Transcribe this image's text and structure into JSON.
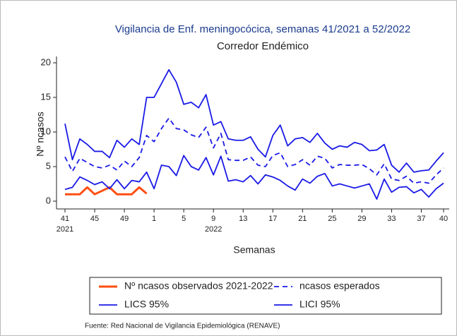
{
  "chart_data": {
    "type": "line",
    "title": "Vigilancia de Enf. meningocócica, semanas 41/2021 a 52/2022",
    "subtitle": "Corredor Endémico",
    "y_label": "Nº ncasos",
    "x_label": "Semanas",
    "year_labels": [
      {
        "value": 0,
        "label": "2021"
      },
      {
        "value": 20,
        "label": "2022"
      }
    ],
    "source": "Fuente: Red Nacional de Vigilancia Epidemiológica (RENAVE)",
    "xlim": [
      0,
      51
    ],
    "xticks": [
      {
        "value": 0,
        "label": "41"
      },
      {
        "value": 4,
        "label": "45"
      },
      {
        "value": 8,
        "label": "49"
      },
      {
        "value": 12,
        "label": "1"
      },
      {
        "value": 16,
        "label": "5"
      },
      {
        "value": 20,
        "label": "9"
      },
      {
        "value": 24,
        "label": "13"
      },
      {
        "value": 28,
        "label": "17"
      },
      {
        "value": 32,
        "label": "21"
      },
      {
        "value": 36,
        "label": "25"
      },
      {
        "value": 40,
        "label": "29"
      },
      {
        "value": 44,
        "label": "33"
      },
      {
        "value": 48,
        "label": "37"
      },
      {
        "value": 51,
        "label": "40"
      }
    ],
    "ylim": [
      0,
      20
    ],
    "yticks": [
      0,
      5,
      10,
      15,
      20
    ],
    "legend": "bottom",
    "series": [
      {
        "name": "Nº ncasos observados 2021-2022",
        "color": "#ff4e12",
        "width": 3,
        "dashed": false,
        "x": [
          0,
          1,
          2,
          3,
          4,
          5,
          6,
          7,
          8,
          9,
          10,
          11
        ],
        "values": [
          1,
          1,
          1,
          2,
          1,
          1.5,
          2,
          1,
          1,
          1,
          2,
          1.1
        ]
      },
      {
        "name": "ncasos esperados",
        "color": "#1a1ae6",
        "width": 1.8,
        "dashed": true,
        "x": [
          0,
          1,
          2,
          3,
          4,
          5,
          6,
          7,
          8,
          9,
          10,
          11,
          12,
          13,
          14,
          15,
          16,
          17,
          18,
          19,
          20,
          21,
          22,
          23,
          24,
          25,
          26,
          27,
          28,
          29,
          30,
          31,
          32,
          33,
          34,
          35,
          36,
          37,
          38,
          39,
          40,
          41,
          42,
          43,
          44,
          45,
          46,
          47,
          48,
          49,
          50,
          51
        ],
        "values": [
          6.4,
          4.3,
          6.2,
          5.6,
          5,
          4.8,
          5.2,
          4.5,
          5.8,
          5,
          6.3,
          9.5,
          8.6,
          10.5,
          12,
          10.5,
          10.3,
          9.6,
          9.2,
          10.7,
          7.7,
          9.8,
          6,
          5.9,
          5.9,
          6.4,
          5.2,
          5,
          6.6,
          7,
          5,
          5.3,
          6,
          5.2,
          6.5,
          6.2,
          4.8,
          5.3,
          5.2,
          5.2,
          5.3,
          4.7,
          3.8,
          5.4,
          3.2,
          3,
          3.6,
          2.6,
          2.8,
          2.6,
          3.8,
          4.8
        ]
      },
      {
        "name": "LICS 95%",
        "color": "#1a1ae6",
        "width": 1.8,
        "dashed": false,
        "x": [
          0,
          1,
          2,
          3,
          4,
          5,
          6,
          7,
          8,
          9,
          10,
          11,
          12,
          13,
          14,
          15,
          16,
          17,
          18,
          19,
          20,
          21,
          22,
          23,
          24,
          25,
          26,
          27,
          28,
          29,
          30,
          31,
          32,
          33,
          34,
          35,
          36,
          37,
          38,
          39,
          40,
          41,
          42,
          43,
          44,
          45,
          46,
          47,
          48,
          49,
          50,
          51
        ],
        "values": [
          11.2,
          6,
          9,
          8.2,
          7.2,
          7.2,
          6.3,
          8.8,
          7.8,
          9,
          8.2,
          15,
          15,
          17,
          19,
          17.2,
          14,
          14.3,
          13.5,
          15.4,
          11,
          11.5,
          9,
          8.8,
          8.8,
          9.3,
          7.5,
          6.4,
          9.5,
          11,
          8,
          9,
          9.2,
          8.5,
          9.8,
          8.4,
          7.5,
          8,
          7.8,
          8.5,
          8.2,
          7.3,
          7.4,
          8.2,
          5.2,
          4.2,
          5.5,
          4.2,
          4.4,
          4.5,
          5.8,
          7
        ]
      },
      {
        "name": "LICI 95%",
        "color": "#1a1ae6",
        "width": 1.8,
        "dashed": false,
        "x": [
          0,
          1,
          2,
          3,
          4,
          5,
          6,
          7,
          8,
          9,
          10,
          11,
          12,
          13,
          14,
          15,
          16,
          17,
          18,
          19,
          20,
          21,
          22,
          23,
          24,
          25,
          26,
          27,
          28,
          29,
          30,
          31,
          32,
          33,
          34,
          35,
          36,
          37,
          38,
          39,
          40,
          41,
          42,
          43,
          44,
          45,
          46,
          47,
          48,
          49,
          50,
          51
        ],
        "values": [
          1.7,
          2,
          3.5,
          3,
          2.4,
          2.8,
          1.8,
          3.1,
          1.8,
          3,
          2.8,
          4.2,
          1.8,
          5.2,
          5,
          3.7,
          6.6,
          5,
          4.5,
          6.3,
          3.8,
          6.5,
          2.9,
          3.1,
          2.8,
          3.7,
          2.5,
          3.8,
          3.5,
          3,
          2.2,
          1.6,
          3.2,
          2.6,
          3.6,
          4,
          2.2,
          2.5,
          2.2,
          1.9,
          2.2,
          2.5,
          0.3,
          3.2,
          1.3,
          2,
          2.1,
          1.2,
          1.7,
          0.6,
          1.8,
          2.6
        ]
      }
    ]
  }
}
